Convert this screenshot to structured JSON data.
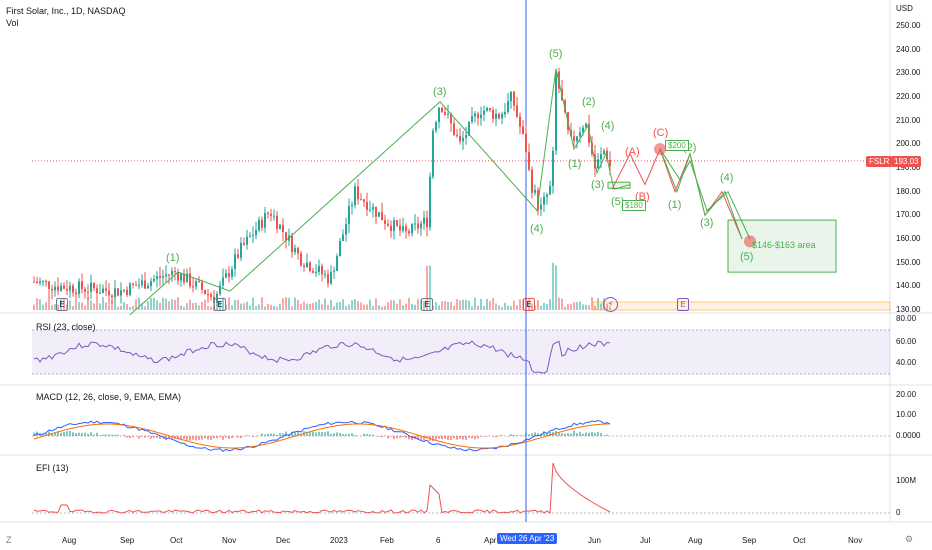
{
  "header": {
    "title": "First Solar, Inc., 1D, NASDAQ",
    "vol_label": "Vol"
  },
  "price_axis": {
    "currency": "USD",
    "ticks": [
      "250.00",
      "240.00",
      "230.00",
      "220.00",
      "210.00",
      "200.00",
      "190.00",
      "180.00",
      "170.00",
      "160.00",
      "150.00",
      "140.00",
      "130.00"
    ]
  },
  "symbol_tag": {
    "ticker": "FSLR",
    "price": "193.03"
  },
  "rsi": {
    "label": "RSI (23, close)",
    "ticks": [
      "80.00",
      "60.00",
      "40.00"
    ]
  },
  "macd": {
    "label": "MACD (12, 26, close, 9, EMA, EMA)",
    "ticks": [
      "20.00",
      "10.00",
      "0.0000"
    ]
  },
  "efi": {
    "label": "EFI (13)",
    "ticks": [
      "100M",
      "0"
    ]
  },
  "time_axis": {
    "ticks": [
      "Aug",
      "Sep",
      "Oct",
      "Nov",
      "Dec",
      "2023",
      "Feb",
      "6",
      "Apr",
      "Jun",
      "Jul",
      "Aug",
      "Sep",
      "Oct",
      "Nov"
    ],
    "cursor_date": "Wed 26 Apr '23"
  },
  "waves": {
    "w1": "(1)",
    "w3": "(3)",
    "w4a": "(4)",
    "w5": "(5)",
    "s1": "(1)",
    "s2": "(2)",
    "s3": "(3)",
    "s4": "(4)",
    "s5": "(5)",
    "A": "(A)",
    "B": "(B)",
    "C": "(C)",
    "f2": "(2)",
    "f1": "(1)",
    "f3": "(3)",
    "f4": "(4)",
    "f5": "(5)"
  },
  "annotations": {
    "p200": "$200",
    "p180": "$180",
    "area": "$146-$163 area"
  },
  "events": {
    "earnings": "E"
  },
  "bottom_icons": {
    "left": "Z",
    "right": "⚙"
  },
  "colors": {
    "bull": "#26a69a",
    "bear": "#ef5350",
    "wave": "#4caf50",
    "corr": "#ef5350",
    "rsi": "#7e57c2",
    "macd": "#2962ff",
    "signal": "#ff6d00",
    "cursor": "#2962ff"
  }
}
